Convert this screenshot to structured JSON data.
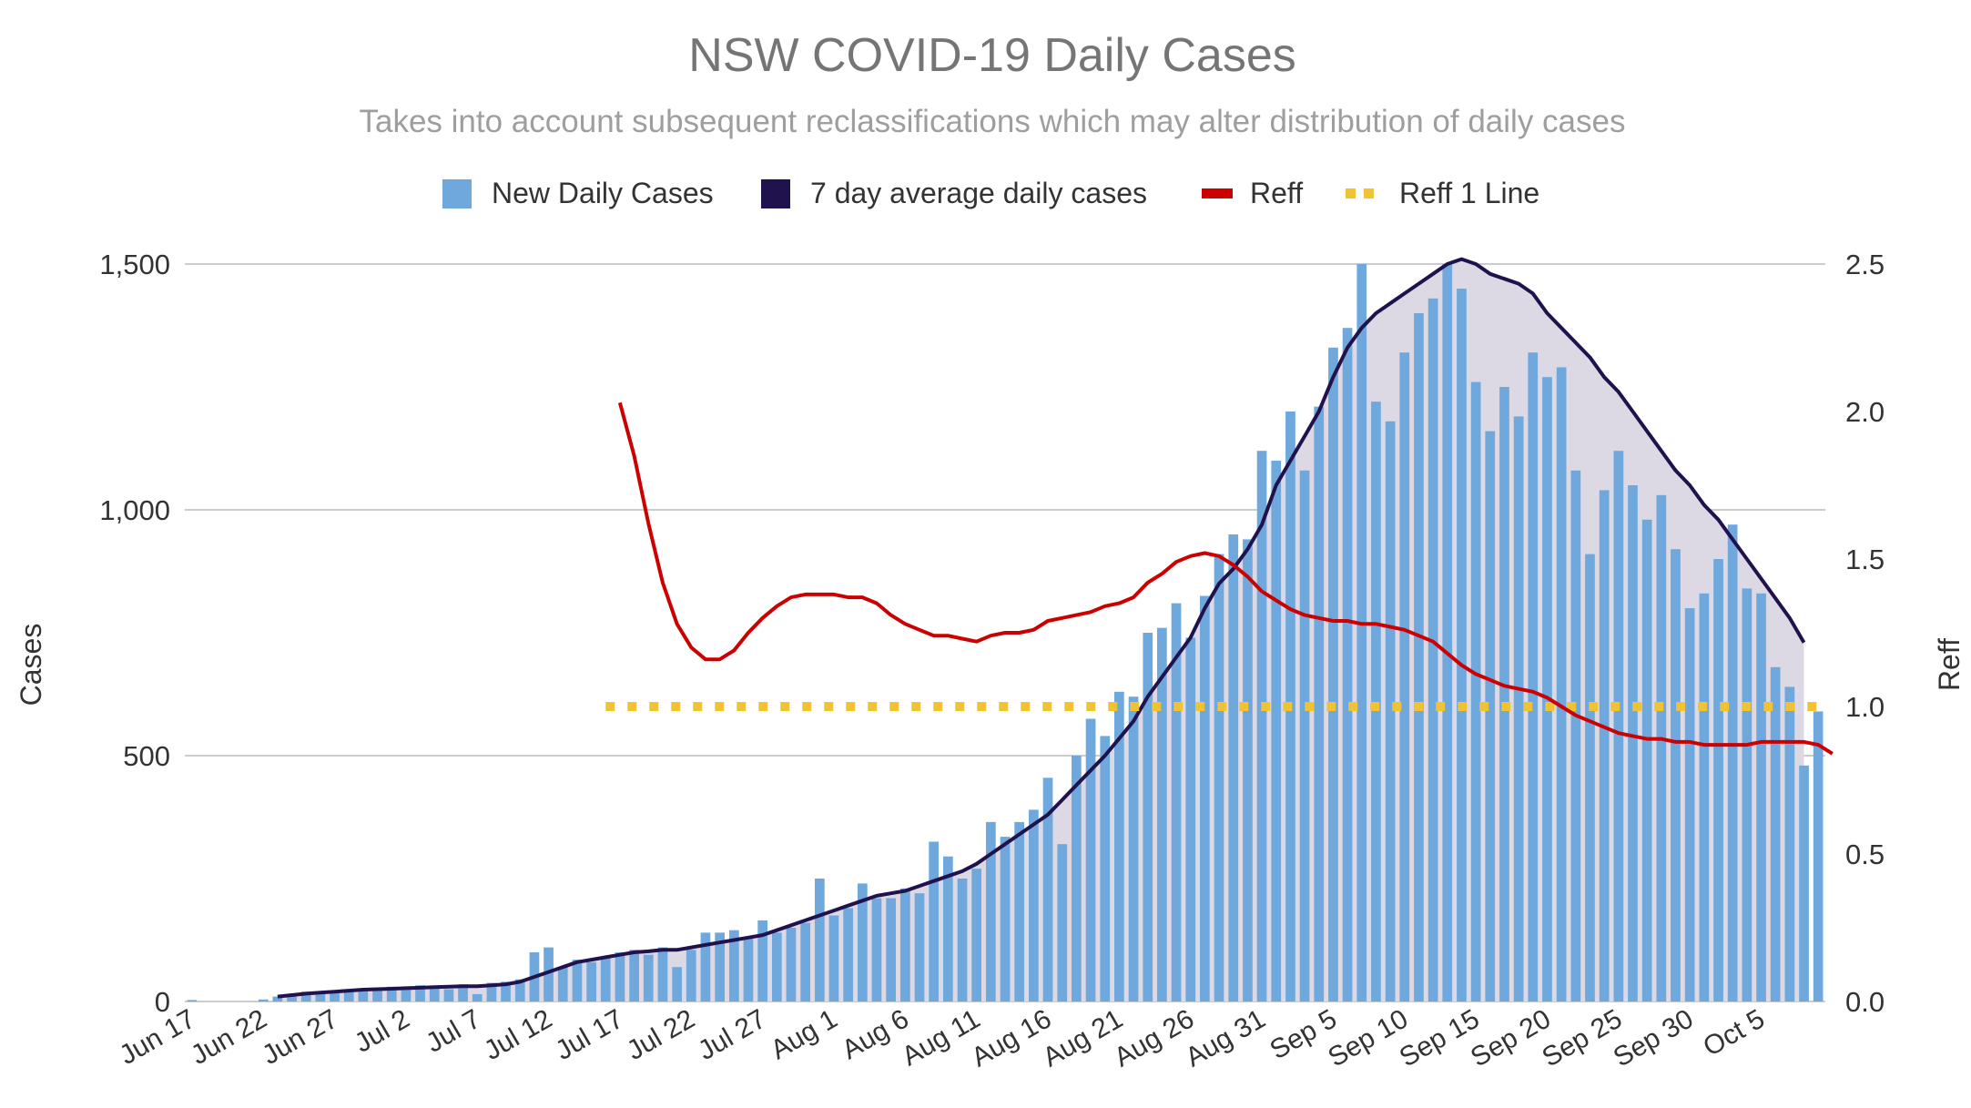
{
  "colors": {
    "bars": "#6fa8dc",
    "avg": "#20124d",
    "avg_fill": "#dcd8e4",
    "reff": "#cc0000",
    "ref_line": "#f1c232",
    "grid": "#cccccc",
    "title": "#757575",
    "subtitle": "#9e9e9e",
    "axis_text": "#333333"
  },
  "chart_data": {
    "type": "bar",
    "title": "NSW COVID-19 Daily Cases",
    "subtitle": "Takes into account subsequent reclassifications which may alter distribution of daily cases",
    "xlabel": "",
    "ylabel": "Cases",
    "y2label": "Reff",
    "ylim": [
      0,
      1500
    ],
    "y2lim": [
      0,
      2.5
    ],
    "yticks": [
      "0",
      "500",
      "1,000",
      "1,500"
    ],
    "y2ticks": [
      "0.0",
      "0.5",
      "1.0",
      "1.5",
      "2.0",
      "2.5"
    ],
    "legend_position": "top",
    "legend": [
      {
        "label": "New Daily Cases",
        "kind": "bar"
      },
      {
        "label": "7 day average daily cases",
        "kind": "area"
      },
      {
        "label": "Reff",
        "kind": "line"
      },
      {
        "label": "Reff 1 Line",
        "kind": "dotted"
      }
    ],
    "start_date": "Jun 17",
    "xtick_labels": [
      "Jun 17",
      "Jun 22",
      "Jun 27",
      "Jul 2",
      "Jul 7",
      "Jul 12",
      "Jul 17",
      "Jul 22",
      "Jul 27",
      "Aug 1",
      "Aug 6",
      "Aug 11",
      "Aug 16",
      "Aug 21",
      "Aug 26",
      "Aug 31",
      "Sep 5",
      "Sep 10",
      "Sep 15",
      "Sep 20",
      "Sep 25",
      "Sep 30",
      "Oct 5"
    ],
    "xtick_every_days": 5,
    "series": [
      {
        "name": "New Daily Cases",
        "type": "bar",
        "values": [
          3,
          0,
          0,
          0,
          0,
          4,
          10,
          15,
          20,
          18,
          20,
          22,
          24,
          25,
          30,
          28,
          33,
          30,
          25,
          35,
          15,
          38,
          40,
          45,
          100,
          110,
          70,
          85,
          80,
          90,
          100,
          105,
          95,
          110,
          70,
          105,
          140,
          140,
          145,
          130,
          165,
          140,
          150,
          160,
          250,
          175,
          190,
          240,
          210,
          210,
          230,
          220,
          325,
          295,
          250,
          270,
          365,
          335,
          365,
          390,
          455,
          320,
          500,
          575,
          540,
          630,
          620,
          750,
          760,
          810,
          740,
          825,
          910,
          950,
          940,
          1120,
          1100,
          1200,
          1080,
          1210,
          1330,
          1370,
          1500,
          1220,
          1180,
          1320,
          1400,
          1430,
          1500,
          1450,
          1260,
          1160,
          1250,
          1190,
          1320,
          1270,
          1290,
          1080,
          910,
          1040,
          1120,
          1050,
          980,
          1030,
          920,
          800,
          830,
          900,
          970,
          840,
          830,
          680,
          640,
          480,
          590
        ]
      },
      {
        "name": "7 day average daily cases",
        "type": "area",
        "values": [
          null,
          null,
          null,
          null,
          null,
          null,
          10,
          13,
          16,
          18,
          20,
          22,
          24,
          25,
          26,
          27,
          28,
          29,
          30,
          31,
          31,
          33,
          35,
          40,
          50,
          60,
          70,
          80,
          85,
          90,
          95,
          100,
          102,
          105,
          105,
          110,
          115,
          120,
          125,
          130,
          135,
          145,
          155,
          165,
          175,
          185,
          195,
          205,
          215,
          220,
          225,
          235,
          245,
          255,
          265,
          280,
          300,
          320,
          340,
          360,
          380,
          410,
          440,
          470,
          500,
          535,
          570,
          620,
          660,
          700,
          740,
          800,
          850,
          880,
          920,
          970,
          1050,
          1100,
          1150,
          1200,
          1270,
          1330,
          1370,
          1400,
          1420,
          1440,
          1460,
          1480,
          1500,
          1510,
          1500,
          1480,
          1470,
          1460,
          1440,
          1400,
          1370,
          1340,
          1310,
          1270,
          1240,
          1200,
          1160,
          1120,
          1080,
          1050,
          1010,
          980,
          940,
          900,
          860,
          820,
          780,
          730
        ]
      },
      {
        "name": "Reff",
        "type": "line",
        "axis": "right",
        "start_index": 30,
        "values": [
          2.03,
          1.85,
          1.62,
          1.42,
          1.28,
          1.2,
          1.16,
          1.16,
          1.19,
          1.25,
          1.3,
          1.34,
          1.37,
          1.38,
          1.38,
          1.38,
          1.37,
          1.37,
          1.35,
          1.31,
          1.28,
          1.26,
          1.24,
          1.24,
          1.23,
          1.22,
          1.24,
          1.25,
          1.25,
          1.26,
          1.29,
          1.3,
          1.31,
          1.32,
          1.34,
          1.35,
          1.37,
          1.42,
          1.45,
          1.49,
          1.51,
          1.52,
          1.51,
          1.48,
          1.44,
          1.39,
          1.36,
          1.33,
          1.31,
          1.3,
          1.29,
          1.29,
          1.28,
          1.28,
          1.27,
          1.26,
          1.24,
          1.22,
          1.18,
          1.14,
          1.11,
          1.09,
          1.07,
          1.06,
          1.05,
          1.03,
          1.0,
          0.97,
          0.95,
          0.93,
          0.91,
          0.9,
          0.89,
          0.89,
          0.88,
          0.88,
          0.87,
          0.87,
          0.87,
          0.87,
          0.88,
          0.88,
          0.88,
          0.88,
          0.87,
          0.84
        ]
      },
      {
        "name": "Reff 1 Line",
        "type": "reference",
        "axis": "right",
        "value": 1.0,
        "start_index": 29,
        "end_index": 114
      }
    ]
  }
}
